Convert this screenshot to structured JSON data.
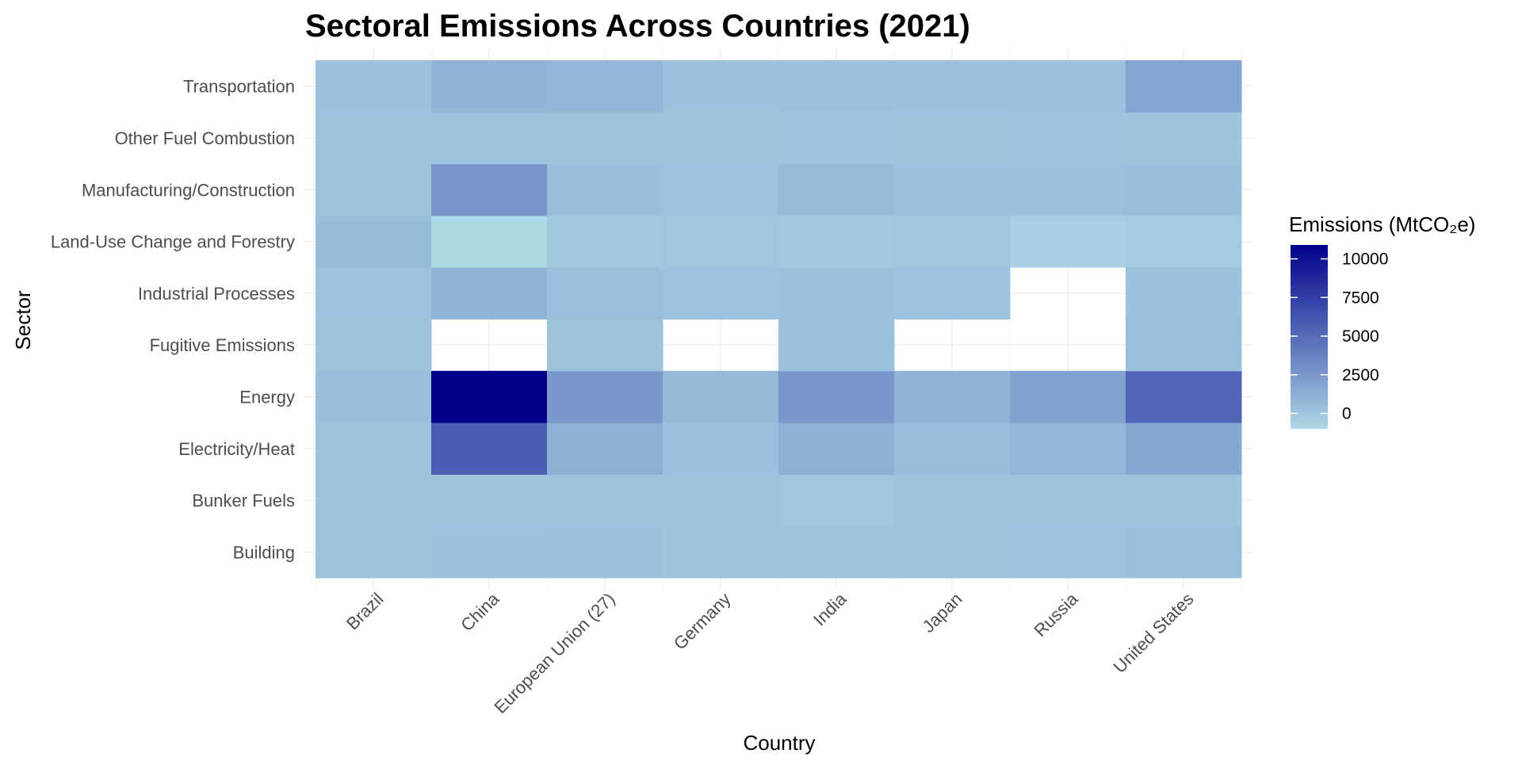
{
  "chart_data": {
    "type": "heatmap",
    "title": "Sectoral Emissions Across Countries (2021)",
    "xlabel": "Country",
    "ylabel": "Sector",
    "x_categories": [
      "Brazil",
      "China",
      "European Union (27)",
      "Germany",
      "India",
      "Japan",
      "Russia",
      "United States"
    ],
    "y_categories": [
      "Building",
      "Bunker Fuels",
      "Electricity/Heat",
      "Energy",
      "Fugitive Emissions",
      "Industrial Processes",
      "Land-Use Change and Forestry",
      "Manufacturing/Construction",
      "Other Fuel Combustion",
      "Transportation"
    ],
    "values": [
      [
        60,
        150,
        150,
        40,
        30,
        20,
        100,
        300
      ],
      [
        20,
        50,
        120,
        20,
        10,
        20,
        30,
        70
      ],
      [
        20,
        5700,
        1200,
        260,
        1200,
        450,
        900,
        1700
      ],
      [
        400,
        10900,
        2600,
        700,
        2600,
        1000,
        2000,
        5300
      ],
      [
        20,
        null,
        120,
        null,
        300,
        null,
        null,
        300
      ],
      [
        100,
        1000,
        300,
        80,
        200,
        80,
        null,
        250
      ],
      [
        500,
        -1000,
        -200,
        -20,
        -200,
        -30,
        -600,
        -300
      ],
      [
        70,
        2700,
        400,
        100,
        600,
        200,
        300,
        400
      ],
      [
        30,
        120,
        120,
        40,
        80,
        40,
        90,
        70
      ],
      [
        200,
        960,
        850,
        150,
        300,
        200,
        250,
        1800
      ]
    ],
    "color_scale": {
      "low_color": "#add8e6",
      "high_color": "#00008b",
      "na_color": "#ffffff",
      "range": [
        -1000,
        10900
      ]
    },
    "legend": {
      "title": "Emissions (MtCO₂e)",
      "position": "right",
      "breaks": [
        0,
        2500,
        5000,
        7500,
        10000
      ],
      "break_labels": [
        "0",
        "2500",
        "5000",
        "7500",
        "10000"
      ]
    },
    "grid": true
  }
}
